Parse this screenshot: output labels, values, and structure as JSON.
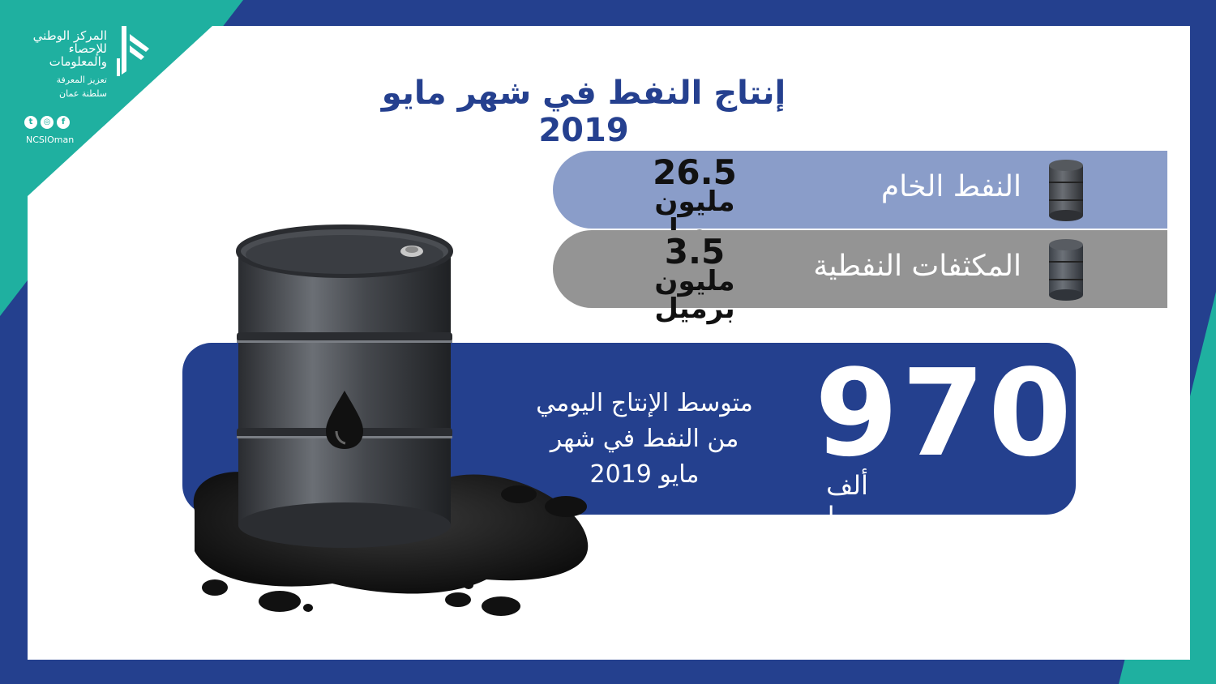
{
  "colors": {
    "navy": "#24408e",
    "teal": "#1fb0a0",
    "crude_pill": "#8a9dc9",
    "condensate_pill": "#949494",
    "white": "#ffffff"
  },
  "logo": {
    "org_name_lines": [
      "المركز الوطني",
      "للإحصاء",
      "والمعلومات"
    ],
    "tagline": "تعزيز المعرفة",
    "country": "سلطنة عمان",
    "social_icons": [
      "twitter-icon",
      "instagram-icon",
      "facebook-icon"
    ],
    "handle": "NCSIOman"
  },
  "title": "إنتاج النفط في شهر مايو 2019",
  "items": [
    {
      "label": "النفط الخام",
      "value": "26.5",
      "unit": "مليون برميل",
      "icon": "barrel-icon"
    },
    {
      "label": "المكثفات النفطية",
      "value": "3.5",
      "unit": "مليون برميل",
      "icon": "barrel-icon"
    }
  ],
  "average": {
    "value": "970",
    "unit": "ألف برميل",
    "description_lines": [
      "متوسط الإنتاج اليومي",
      "من النفط في شهر",
      "مايو 2019"
    ]
  }
}
